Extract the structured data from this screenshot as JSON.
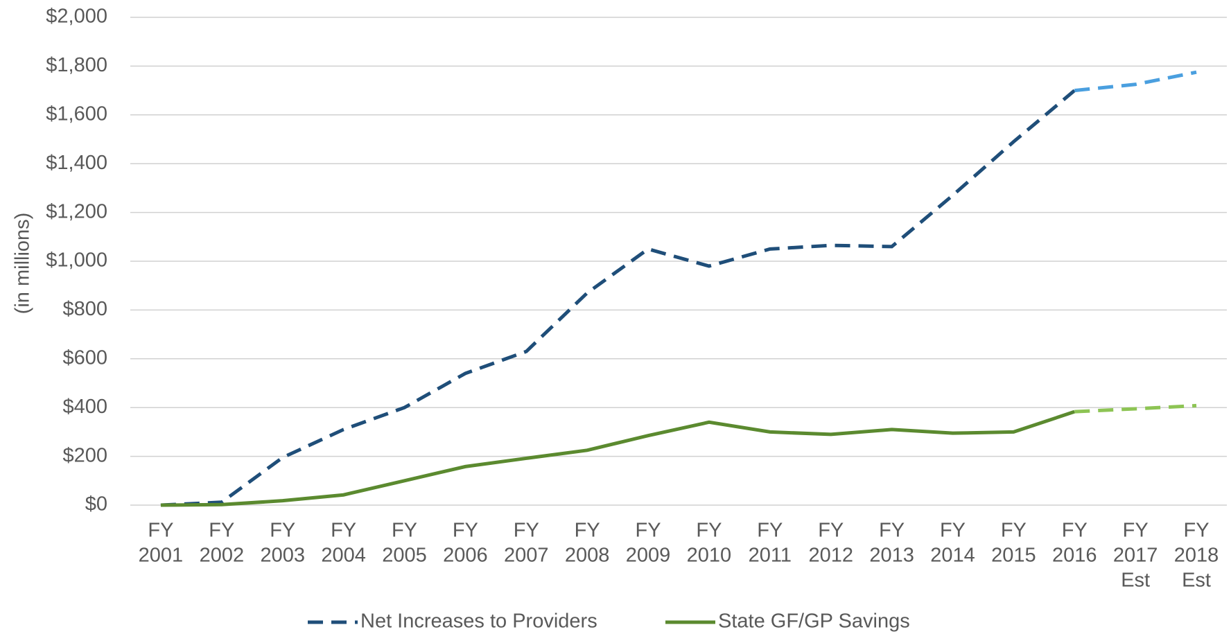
{
  "chart_data": {
    "type": "line",
    "ylabel": "(in millions)",
    "categories": [
      [
        "FY",
        "2001"
      ],
      [
        "FY",
        "2002"
      ],
      [
        "FY",
        "2003"
      ],
      [
        "FY",
        "2004"
      ],
      [
        "FY",
        "2005"
      ],
      [
        "FY",
        "2006"
      ],
      [
        "FY",
        "2007"
      ],
      [
        "FY",
        "2008"
      ],
      [
        "FY",
        "2009"
      ],
      [
        "FY",
        "2010"
      ],
      [
        "FY",
        "2011"
      ],
      [
        "FY",
        "2012"
      ],
      [
        "FY",
        "2013"
      ],
      [
        "FY",
        "2014"
      ],
      [
        "FY",
        "2015"
      ],
      [
        "FY",
        "2016"
      ],
      [
        "FY",
        "2017",
        "Est"
      ],
      [
        "FY",
        "2018",
        "Est"
      ]
    ],
    "series": [
      {
        "name": "Net Increases to Providers",
        "color": "#1f4e79",
        "estimate_color": "#4a9fdf",
        "dashed": true,
        "values": [
          0,
          12,
          195,
          310,
          400,
          540,
          630,
          870,
          1050,
          980,
          1050,
          1065,
          1060,
          1270,
          1490,
          1700,
          1725,
          1775
        ]
      },
      {
        "name": "State GF/GP Savings",
        "color": "#5b8a2f",
        "estimate_color": "#8dc454",
        "dashed": false,
        "values": [
          0,
          2,
          18,
          42,
          100,
          158,
          192,
          225,
          285,
          340,
          300,
          290,
          310,
          295,
          300,
          383,
          395,
          408
        ]
      }
    ],
    "ylim": [
      0,
      2000
    ],
    "yticks": [
      {
        "value": 0,
        "label": "$0"
      },
      {
        "value": 200,
        "label": "$200"
      },
      {
        "value": 400,
        "label": "$400"
      },
      {
        "value": 600,
        "label": "$600"
      },
      {
        "value": 800,
        "label": "$800"
      },
      {
        "value": 1000,
        "label": "$1,000"
      },
      {
        "value": 1200,
        "label": "$1,200"
      },
      {
        "value": 1400,
        "label": "$1,400"
      },
      {
        "value": 1600,
        "label": "$1,600"
      },
      {
        "value": 1800,
        "label": "$1,800"
      },
      {
        "value": 2000,
        "label": "$2,000"
      }
    ],
    "grid": true,
    "legend": "bottom"
  }
}
